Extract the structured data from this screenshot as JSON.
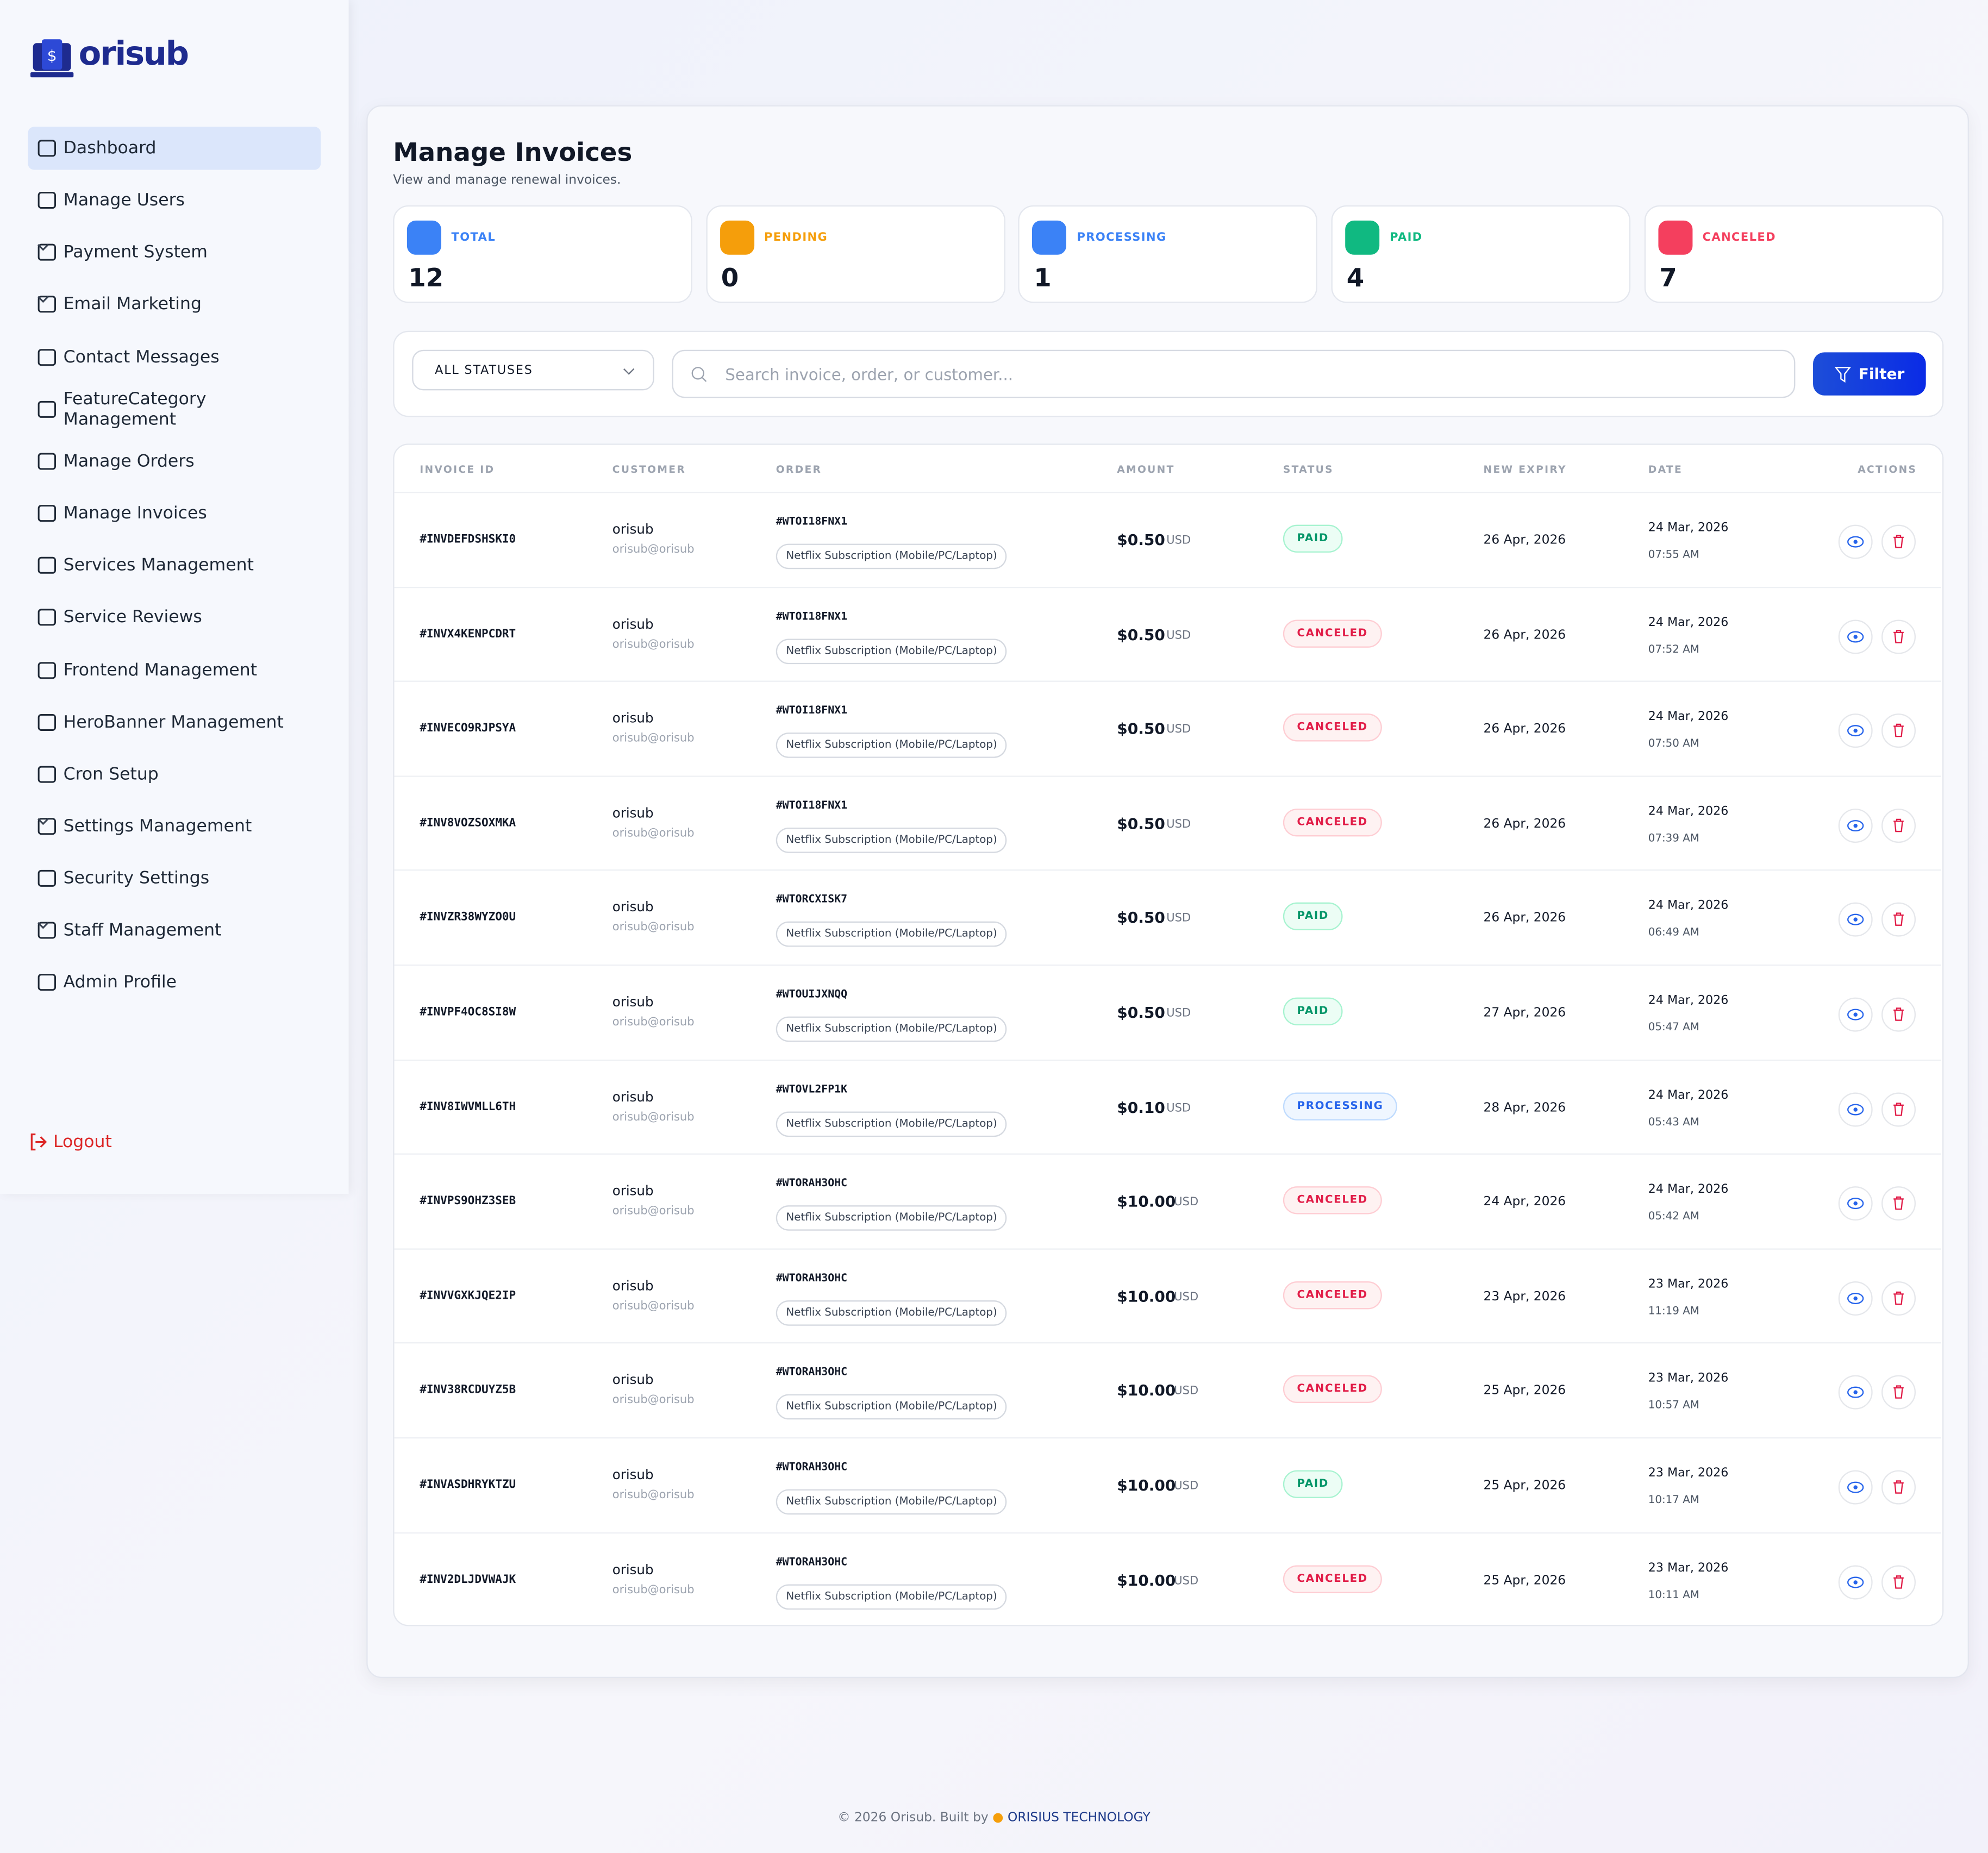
{
  "sidebar": {
    "brand": "orisub",
    "nav": [
      {
        "label": "Dashboard",
        "expandable": false,
        "active": true
      },
      {
        "label": "Manage Users",
        "expandable": false
      },
      {
        "label": "Payment System",
        "expandable": true
      },
      {
        "label": "Email Marketing",
        "expandable": true
      },
      {
        "label": "Contact Messages",
        "expandable": false
      },
      {
        "label": "FeatureCategory Management",
        "expandable": false
      },
      {
        "label": "Manage Orders",
        "expandable": false
      },
      {
        "label": "Manage Invoices",
        "expandable": false
      },
      {
        "label": "Services Management",
        "expandable": false
      },
      {
        "label": "Service Reviews",
        "expandable": false
      },
      {
        "label": "Frontend Management",
        "expandable": false
      },
      {
        "label": "HeroBanner Management",
        "expandable": false
      },
      {
        "label": "Cron Setup",
        "expandable": false
      },
      {
        "label": "Settings Management",
        "expandable": true
      },
      {
        "label": "Security Settings",
        "expandable": false
      },
      {
        "label": "Staff Management",
        "expandable": true
      },
      {
        "label": "Admin Profile",
        "expandable": false
      }
    ],
    "logout": "Logout"
  },
  "header": {
    "title": "Manage Invoices",
    "subtitle": "View and manage renewal invoices."
  },
  "stats": [
    {
      "label": "TOTAL",
      "value": 12,
      "color": "#3b82f6"
    },
    {
      "label": "PENDING",
      "value": 0,
      "color": "#f59e0b"
    },
    {
      "label": "PROCESSING",
      "value": 1,
      "color": "#3b82f6"
    },
    {
      "label": "PAID",
      "value": 4,
      "color": "#10b981"
    },
    {
      "label": "CANCELED",
      "value": 7,
      "color": "#f43f5e"
    }
  ],
  "filters": {
    "status": "ALL STATUSES",
    "search_placeholder": "Search invoice, order, or customer...",
    "button": "Filter"
  },
  "table": {
    "columns": [
      "INVOICE ID",
      "CUSTOMER",
      "ORDER",
      "AMOUNT",
      "STATUS",
      "NEW EXPIRY",
      "DATE",
      "ACTIONS"
    ],
    "rows": [
      {
        "invoice": "#INVDEFDSHSKI0",
        "customer": "orisub",
        "email": "orisub@orisub",
        "order": "#WTOI18FNX1",
        "product": "Netflix Subscription (Mobile/PC/Laptop)",
        "amount": "$0.50",
        "currency": "USD",
        "status": "PAID",
        "expiry": "26 Apr, 2026",
        "date": "24 Mar, 2026",
        "time": "07:55 AM"
      },
      {
        "invoice": "#INVX4KENPCDRT",
        "customer": "orisub",
        "email": "orisub@orisub",
        "order": "#WTOI18FNX1",
        "product": "Netflix Subscription (Mobile/PC/Laptop)",
        "amount": "$0.50",
        "currency": "USD",
        "status": "CANCELED",
        "expiry": "26 Apr, 2026",
        "date": "24 Mar, 2026",
        "time": "07:52 AM"
      },
      {
        "invoice": "#INVECO9RJPSYA",
        "customer": "orisub",
        "email": "orisub@orisub",
        "order": "#WTOI18FNX1",
        "product": "Netflix Subscription (Mobile/PC/Laptop)",
        "amount": "$0.50",
        "currency": "USD",
        "status": "CANCELED",
        "expiry": "26 Apr, 2026",
        "date": "24 Mar, 2026",
        "time": "07:50 AM"
      },
      {
        "invoice": "#INV8VOZSOXMKA",
        "customer": "orisub",
        "email": "orisub@orisub",
        "order": "#WTOI18FNX1",
        "product": "Netflix Subscription (Mobile/PC/Laptop)",
        "amount": "$0.50",
        "currency": "USD",
        "status": "CANCELED",
        "expiry": "26 Apr, 2026",
        "date": "24 Mar, 2026",
        "time": "07:39 AM"
      },
      {
        "invoice": "#INVZR38WYZO0U",
        "customer": "orisub",
        "email": "orisub@orisub",
        "order": "#WTORCXISK7",
        "product": "Netflix Subscription (Mobile/PC/Laptop)",
        "amount": "$0.50",
        "currency": "USD",
        "status": "PAID",
        "expiry": "26 Apr, 2026",
        "date": "24 Mar, 2026",
        "time": "06:49 AM"
      },
      {
        "invoice": "#INVPF4OC8SI8W",
        "customer": "orisub",
        "email": "orisub@orisub",
        "order": "#WTOUIJXNQQ",
        "product": "Netflix Subscription (Mobile/PC/Laptop)",
        "amount": "$0.50",
        "currency": "USD",
        "status": "PAID",
        "expiry": "27 Apr, 2026",
        "date": "24 Mar, 2026",
        "time": "05:47 AM"
      },
      {
        "invoice": "#INV8IWVMLL6TH",
        "customer": "orisub",
        "email": "orisub@orisub",
        "order": "#WTOVL2FP1K",
        "product": "Netflix Subscription (Mobile/PC/Laptop)",
        "amount": "$0.10",
        "currency": "USD",
        "status": "PROCESSING",
        "expiry": "28 Apr, 2026",
        "date": "24 Mar, 2026",
        "time": "05:43 AM"
      },
      {
        "invoice": "#INVPS9OHZ3SEB",
        "customer": "orisub",
        "email": "orisub@orisub",
        "order": "#WTORAH3OHC",
        "product": "Netflix Subscription (Mobile/PC/Laptop)",
        "amount": "$10.00",
        "currency": "USD",
        "status": "CANCELED",
        "expiry": "24 Apr, 2026",
        "date": "24 Mar, 2026",
        "time": "05:42 AM"
      },
      {
        "invoice": "#INVVGXKJQE2IP",
        "customer": "orisub",
        "email": "orisub@orisub",
        "order": "#WTORAH3OHC",
        "product": "Netflix Subscription (Mobile/PC/Laptop)",
        "amount": "$10.00",
        "currency": "USD",
        "status": "CANCELED",
        "expiry": "23 Apr, 2026",
        "date": "23 Mar, 2026",
        "time": "11:19 AM"
      },
      {
        "invoice": "#INV38RCDUYZ5B",
        "customer": "orisub",
        "email": "orisub@orisub",
        "order": "#WTORAH3OHC",
        "product": "Netflix Subscription (Mobile/PC/Laptop)",
        "amount": "$10.00",
        "currency": "USD",
        "status": "CANCELED",
        "expiry": "25 Apr, 2026",
        "date": "23 Mar, 2026",
        "time": "10:57 AM"
      },
      {
        "invoice": "#INVASDHRYKTZU",
        "customer": "orisub",
        "email": "orisub@orisub",
        "order": "#WTORAH3OHC",
        "product": "Netflix Subscription (Mobile/PC/Laptop)",
        "amount": "$10.00",
        "currency": "USD",
        "status": "PAID",
        "expiry": "25 Apr, 2026",
        "date": "23 Mar, 2026",
        "time": "10:17 AM"
      },
      {
        "invoice": "#INV2DLJDVWAJK",
        "customer": "orisub",
        "email": "orisub@orisub",
        "order": "#WTORAH3OHC",
        "product": "Netflix Subscription (Mobile/PC/Laptop)",
        "amount": "$10.00",
        "currency": "USD",
        "status": "CANCELED",
        "expiry": "25 Apr, 2026",
        "date": "23 Mar, 2026",
        "time": "10:11 AM"
      }
    ]
  },
  "footer": {
    "text": "© 2026 Orisub. Built by",
    "link": "ORISIUS TECHNOLOGY"
  }
}
